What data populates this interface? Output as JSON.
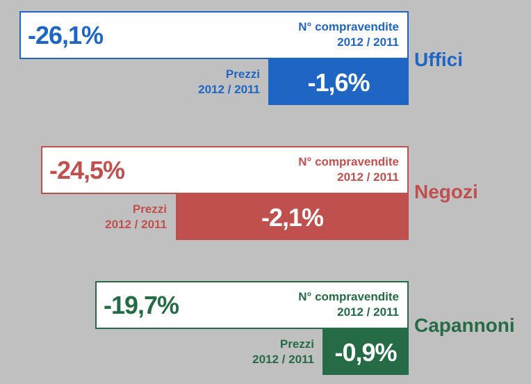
{
  "chart_data": {
    "type": "table",
    "categories": [
      "Uffici",
      "Negozi",
      "Capannoni"
    ],
    "series": [
      {
        "values": [
          -26.1,
          -24.5,
          -19.7
        ]
      },
      {
        "values": [
          -1.6,
          -2.1,
          -0.9
        ]
      }
    ],
    "labels": {
      "volume_title": "N° compravendite",
      "volume_period": "2012 / 2011",
      "price_title": "Prezzi",
      "price_period": "2012 / 2011"
    },
    "rows": [
      {
        "category": "Uffici",
        "volume_text": "-26,1%",
        "price_text": "-1,6%",
        "color": "#1f66c4"
      },
      {
        "category": "Negozi",
        "volume_text": "-24,5%",
        "price_text": "-2,1%",
        "color": "#c0504d"
      },
      {
        "category": "Capannoni",
        "volume_text": "-19,7%",
        "price_text": "-0,9%",
        "color": "#256b45"
      }
    ]
  }
}
